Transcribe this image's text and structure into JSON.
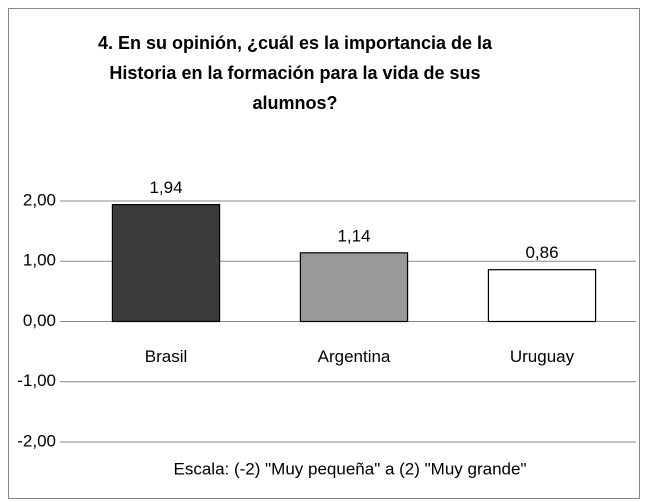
{
  "chart_data": {
    "type": "bar",
    "title": "4. En su opinión, ¿cuál es la importancia de la Historia en la formación para la vida de sus alumnos?",
    "annotation": "Escala: (-2) \"Muy pequeña\" a (2) \"Muy grande\"",
    "categories": [
      "Brasil",
      "Argentina",
      "Uruguay"
    ],
    "values": [
      1.94,
      1.14,
      0.86
    ],
    "value_labels": [
      "1,94",
      "1,14",
      "0,86"
    ],
    "colors": [
      "#3b3b3b",
      "#999999",
      "#ffffff"
    ],
    "ylim": [
      -2,
      2
    ],
    "yticks": [
      {
        "value": -2,
        "label": "-2,00"
      },
      {
        "value": -1,
        "label": "-1,00"
      },
      {
        "value": 0,
        "label": "0,00"
      },
      {
        "value": 1,
        "label": "1,00"
      },
      {
        "value": 2,
        "label": "2,00"
      }
    ],
    "grid": true
  }
}
